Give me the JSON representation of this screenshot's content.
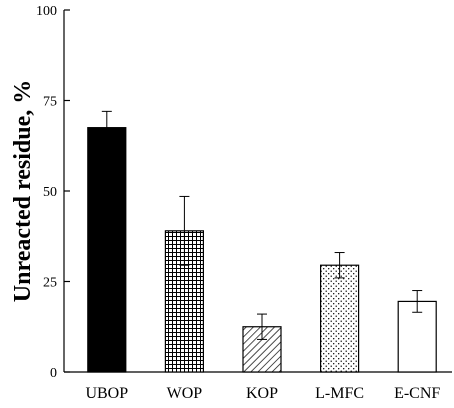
{
  "chart_data": {
    "type": "bar",
    "ylabel": "Unreacted residue, %",
    "xlabel": "",
    "ylim": [
      0,
      100
    ],
    "yticks": [
      0,
      25,
      50,
      75,
      100
    ],
    "categories": [
      "UBOP",
      "WOP",
      "KOP",
      "L-MFC",
      "E-CNF"
    ],
    "values": [
      67.5,
      39,
      12.5,
      29.5,
      19.5
    ],
    "errors": [
      4.5,
      9.5,
      3.5,
      3.5,
      3
    ],
    "fills": [
      "solid-black",
      "crosshatch",
      "diagonal-hatch",
      "dots",
      "white"
    ],
    "grid": false,
    "legend": "none"
  }
}
